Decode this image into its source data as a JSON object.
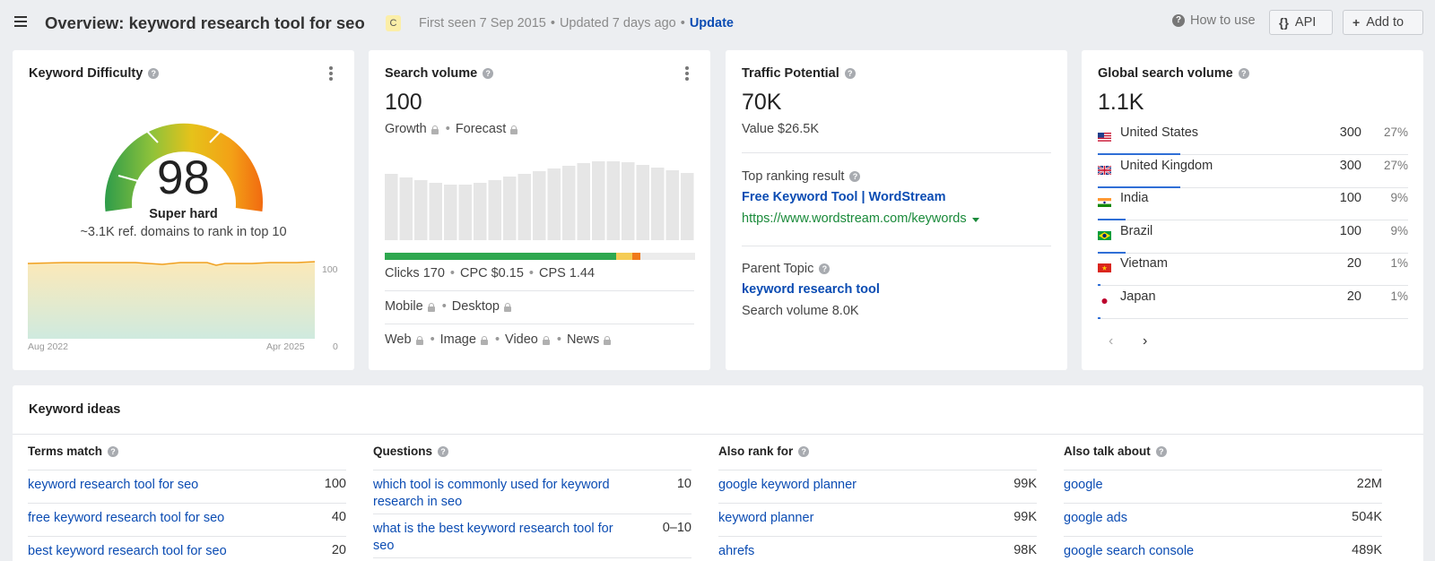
{
  "header": {
    "title": "Overview: keyword research tool for seo",
    "country_badge": "C",
    "first_seen": "First seen 7 Sep 2015",
    "updated": "Updated 7 days ago",
    "update_link": "Update",
    "how_to_use": "How to use",
    "api_label": "API",
    "add_to_label": "Add to"
  },
  "kd": {
    "title": "Keyword Difficulty",
    "value": "98",
    "level": "Super hard",
    "sub": "~3.1K ref. domains to rank in top 10",
    "chart_x_start": "Aug 2022",
    "chart_x_end": "Apr 2025",
    "chart_y_max": "100",
    "chart_y_min": "0"
  },
  "volume": {
    "title": "Search volume",
    "value": "100",
    "growth": "Growth",
    "forecast": "Forecast",
    "clicks": "Clicks 170",
    "cpc": "CPC $0.15",
    "cps": "CPS 1.44",
    "mobile": "Mobile",
    "desktop": "Desktop",
    "web": "Web",
    "image": "Image",
    "video": "Video",
    "news": "News"
  },
  "traffic": {
    "title": "Traffic Potential",
    "value": "70K",
    "value_usd": "Value $26.5K",
    "top_ranking_label": "Top ranking result",
    "top_ranking_title": "Free Keyword Tool | WordStream",
    "top_ranking_url": "https://www.wordstream.com/keywords",
    "parent_topic_label": "Parent Topic",
    "parent_topic": "keyword research tool",
    "parent_volume": "Search volume 8.0K"
  },
  "global": {
    "title": "Global search volume",
    "value": "1.1K",
    "countries": [
      {
        "name": "United States",
        "volume": "300",
        "pct": "27%",
        "share": 0.27
      },
      {
        "name": "United Kingdom",
        "volume": "300",
        "pct": "27%",
        "share": 0.27
      },
      {
        "name": "India",
        "volume": "100",
        "pct": "9%",
        "share": 0.09
      },
      {
        "name": "Brazil",
        "volume": "100",
        "pct": "9%",
        "share": 0.09
      },
      {
        "name": "Vietnam",
        "volume": "20",
        "pct": "1%",
        "share": 0.01
      },
      {
        "name": "Japan",
        "volume": "20",
        "pct": "1%",
        "share": 0.01
      }
    ]
  },
  "ideas": {
    "title": "Keyword ideas",
    "columns": [
      {
        "heading": "Terms match",
        "rows": [
          {
            "kw": "keyword research tool for seo",
            "num": "100"
          },
          {
            "kw": "free keyword research tool for seo",
            "num": "40"
          },
          {
            "kw": "best keyword research tool for seo",
            "num": "20"
          }
        ]
      },
      {
        "heading": "Questions",
        "rows": [
          {
            "kw": "which tool is commonly used for keyword research in seo",
            "num": "10"
          },
          {
            "kw": "what is the best keyword research tool for seo",
            "num": "0–10"
          }
        ]
      },
      {
        "heading": "Also rank for",
        "rows": [
          {
            "kw": "google keyword planner",
            "num": "99K"
          },
          {
            "kw": "keyword planner",
            "num": "99K"
          },
          {
            "kw": "ahrefs",
            "num": "98K"
          }
        ]
      },
      {
        "heading": "Also talk about",
        "rows": [
          {
            "kw": "google",
            "num": "22M"
          },
          {
            "kw": "google ads",
            "num": "504K"
          },
          {
            "kw": "google search console",
            "num": "489K"
          }
        ]
      }
    ]
  },
  "colors": {
    "link": "#0b4cb3",
    "url_green": "#1a8a3a",
    "bar_blue": "#2f6fd6",
    "clicks_green": "#2ea84f",
    "clicks_yellow": "#f5cc55",
    "clicks_orange": "#f07a1a"
  }
}
